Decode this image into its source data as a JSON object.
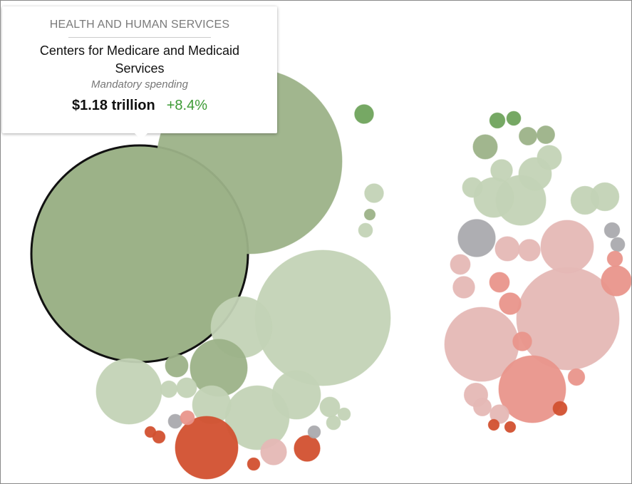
{
  "tooltip": {
    "department": "HEALTH AND HUMAN SERVICES",
    "agency": "Centers for Medicare and Medicaid Services",
    "spending_type": "Mandatory spending",
    "amount": "$1.18 trillion",
    "change": "+8.4%"
  },
  "colors": {
    "dg": "#6fa35c",
    "mg": "#9cb288",
    "lg": "#c3d3b6",
    "gy": "#aaaaae",
    "lp": "#e5b8b5",
    "pk": "#e9958b",
    "rd": "#d2502f",
    "selected_stroke": "#111111"
  },
  "chart_data": {
    "type": "bubble",
    "title": "",
    "value_unit": "billions (estimated)",
    "bubbles": [
      {
        "value": 1180,
        "c": "mg",
        "selected": true
      },
      {
        "value": 863,
        "c": "mg"
      },
      {
        "value": 461,
        "c": "lg"
      },
      {
        "value": 94,
        "c": "lg"
      },
      {
        "value": 82,
        "c": "mg"
      },
      {
        "value": 108,
        "c": "lg"
      },
      {
        "value": 103,
        "c": "lg"
      },
      {
        "value": 59,
        "c": "lg"
      },
      {
        "value": 37,
        "c": "lg"
      },
      {
        "value": 99,
        "c": "rd"
      },
      {
        "value": 17,
        "c": "lp"
      },
      {
        "value": 17,
        "c": "rd"
      },
      {
        "value": 9,
        "c": "dg"
      },
      {
        "value": 9,
        "c": "lg"
      },
      {
        "value": 56,
        "c": "lg"
      },
      {
        "value": 13,
        "c": "mg"
      },
      {
        "value": 10,
        "c": "lg"
      },
      {
        "value": 7,
        "c": "lg"
      },
      {
        "value": 10,
        "c": "lg"
      },
      {
        "value": 5,
        "c": "lg"
      },
      {
        "value": 5,
        "c": "gy"
      },
      {
        "value": 4,
        "c": "gy"
      },
      {
        "value": 5,
        "c": "pk"
      },
      {
        "value": 4,
        "c": "rd"
      },
      {
        "value": 4,
        "c": "rd"
      },
      {
        "value": 3,
        "c": "rd"
      },
      {
        "value": 5,
        "c": "lg"
      },
      {
        "value": 3,
        "c": "mg"
      },
      {
        "value": 4,
        "c": "lg"
      },
      {
        "value": 265,
        "c": "lp"
      },
      {
        "value": 138,
        "c": "lp"
      },
      {
        "value": 113,
        "c": "pk"
      },
      {
        "value": 70,
        "c": "lp"
      },
      {
        "value": 35,
        "c": "gy"
      },
      {
        "value": 63,
        "c": "lg"
      },
      {
        "value": 40,
        "c": "lg"
      },
      {
        "value": 27,
        "c": "lg"
      },
      {
        "value": 23,
        "c": "pk"
      },
      {
        "value": 15,
        "c": "lp"
      },
      {
        "value": 15,
        "c": "mg"
      },
      {
        "value": 5,
        "c": "dg"
      },
      {
        "value": 12,
        "c": "lp"
      },
      {
        "value": 20,
        "c": "lg"
      },
      {
        "value": 20,
        "c": "lg"
      },
      {
        "value": 15,
        "c": "lg"
      },
      {
        "value": 12,
        "c": "lp"
      },
      {
        "value": 10,
        "c": "pk"
      },
      {
        "value": 12,
        "c": "pk"
      },
      {
        "value": 9,
        "c": "pk"
      },
      {
        "value": 14,
        "c": "lp"
      },
      {
        "value": 5,
        "c": "rd"
      },
      {
        "value": 8,
        "c": "mg"
      },
      {
        "value": 8,
        "c": "mg"
      },
      {
        "value": 6,
        "c": "dg"
      },
      {
        "value": 6,
        "c": "gy"
      },
      {
        "value": 5,
        "c": "gy"
      },
      {
        "value": 6,
        "c": "pk"
      },
      {
        "value": 12,
        "c": "lg"
      },
      {
        "value": 10,
        "c": "lg"
      },
      {
        "value": 9,
        "c": "lp"
      },
      {
        "value": 8,
        "c": "lp"
      },
      {
        "value": 3,
        "c": "rd"
      },
      {
        "value": 3,
        "c": "rd"
      },
      {
        "value": 10,
        "c": "lp"
      },
      {
        "value": 7,
        "c": "pk"
      }
    ]
  }
}
